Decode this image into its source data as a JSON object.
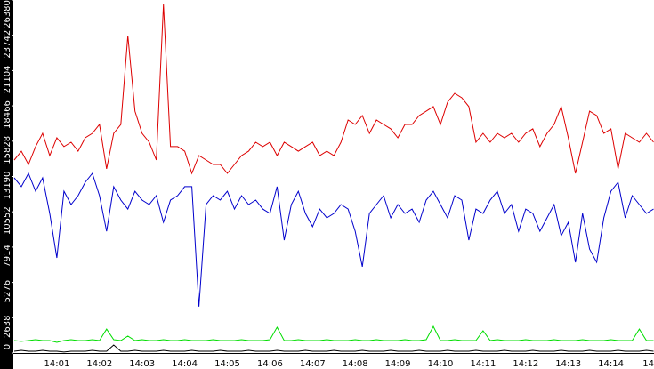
{
  "chart_data": {
    "type": "line",
    "categories": [
      null,
      null,
      null,
      null,
      null,
      null,
      "14:01",
      null,
      null,
      null,
      null,
      null,
      "14:02",
      null,
      null,
      null,
      null,
      null,
      "14:03",
      null,
      null,
      null,
      null,
      null,
      "14:04",
      null,
      null,
      null,
      null,
      null,
      "14:05",
      null,
      null,
      null,
      null,
      null,
      "14:06",
      null,
      null,
      null,
      null,
      null,
      "14:07",
      null,
      null,
      null,
      null,
      null,
      "14:08",
      null,
      null,
      null,
      null,
      null,
      "14:09",
      null,
      null,
      null,
      null,
      null,
      "14:10",
      null,
      null,
      null,
      null,
      null,
      "14:11",
      null,
      null,
      null,
      null,
      null,
      "14:12",
      null,
      null,
      null,
      null,
      null,
      "14:13",
      null,
      null,
      null,
      null,
      null,
      "14:14",
      null,
      null,
      null,
      null,
      null,
      "14"
    ],
    "ylim": [
      0,
      26380
    ],
    "yticks": [
      0,
      2638,
      5276,
      7914,
      10552,
      13190,
      15828,
      18466,
      21104,
      23742,
      26380
    ],
    "series": [
      {
        "color": "#dd0000",
        "values": [
          14420,
          15080,
          14090,
          15420,
          16410,
          14750,
          16080,
          15420,
          15750,
          15080,
          16080,
          16410,
          17080,
          13760,
          16410,
          17080,
          23720,
          18070,
          16410,
          15750,
          14420,
          26050,
          15420,
          15420,
          15080,
          13420,
          14750,
          14420,
          14090,
          14090,
          13420,
          14090,
          14750,
          15080,
          15750,
          15420,
          15750,
          14750,
          15750,
          15420,
          15080,
          15420,
          15750,
          14750,
          15080,
          14750,
          15750,
          17410,
          17080,
          17740,
          16410,
          17410,
          17080,
          16750,
          16080,
          17080,
          17080,
          17740,
          18070,
          18410,
          17080,
          18740,
          19400,
          19070,
          18410,
          15750,
          16410,
          15750,
          16410,
          16080,
          16410,
          15750,
          16410,
          16750,
          15420,
          16410,
          17080,
          18410,
          16080,
          13420,
          15750,
          18070,
          17740,
          16410,
          16750,
          13760,
          16410,
          16080,
          15750,
          16410,
          15750
        ]
      },
      {
        "color": "#0000cc",
        "values": [
          13090,
          12430,
          13420,
          12090,
          13090,
          10430,
          7110,
          12090,
          11100,
          11760,
          12760,
          13420,
          11760,
          9100,
          12430,
          11430,
          10760,
          12090,
          11430,
          11100,
          11760,
          9770,
          11430,
          11760,
          12430,
          12430,
          3460,
          11100,
          11760,
          11430,
          12090,
          10760,
          11760,
          11100,
          11430,
          10760,
          10430,
          12430,
          8440,
          11100,
          12090,
          10430,
          9440,
          10760,
          10100,
          10430,
          11100,
          10760,
          9100,
          6450,
          10430,
          11100,
          11760,
          10100,
          11100,
          10430,
          10760,
          9770,
          11430,
          12090,
          11100,
          10100,
          11760,
          11430,
          8440,
          10760,
          10430,
          11430,
          12090,
          10430,
          11100,
          9100,
          10760,
          10430,
          9100,
          10100,
          11100,
          8770,
          9770,
          6780,
          10430,
          7770,
          6780,
          10100,
          12090,
          12760,
          10100,
          11760,
          11100,
          10430,
          10760
        ]
      },
      {
        "color": "#00dd00",
        "values": [
          930,
          870,
          930,
          1000,
          930,
          930,
          800,
          930,
          1000,
          930,
          930,
          1000,
          930,
          1790,
          1000,
          930,
          1260,
          930,
          1000,
          930,
          930,
          1000,
          930,
          930,
          1000,
          930,
          930,
          930,
          1000,
          930,
          930,
          930,
          1000,
          930,
          930,
          930,
          1000,
          1930,
          930,
          930,
          1000,
          930,
          930,
          930,
          1000,
          930,
          930,
          930,
          1000,
          930,
          930,
          1000,
          930,
          930,
          930,
          1000,
          930,
          930,
          1000,
          1990,
          930,
          930,
          1000,
          930,
          930,
          930,
          1660,
          930,
          1000,
          930,
          930,
          930,
          1000,
          930,
          930,
          930,
          1000,
          930,
          930,
          930,
          1000,
          930,
          930,
          930,
          1000,
          930,
          930,
          930,
          1790,
          930,
          930
        ]
      },
      {
        "color": "#000000",
        "values": [
          130,
          200,
          130,
          130,
          200,
          130,
          130,
          70,
          130,
          130,
          130,
          200,
          130,
          130,
          600,
          130,
          130,
          200,
          130,
          130,
          130,
          200,
          130,
          130,
          130,
          200,
          130,
          130,
          130,
          200,
          130,
          130,
          130,
          200,
          130,
          130,
          130,
          200,
          130,
          130,
          130,
          200,
          130,
          130,
          130,
          200,
          130,
          130,
          130,
          200,
          130,
          130,
          130,
          200,
          130,
          130,
          130,
          200,
          130,
          130,
          130,
          200,
          130,
          130,
          130,
          200,
          130,
          130,
          130,
          200,
          130,
          130,
          130,
          200,
          130,
          130,
          130,
          200,
          130,
          130,
          130,
          200,
          130,
          130,
          130,
          200,
          130,
          130,
          130,
          200,
          130
        ]
      }
    ]
  }
}
